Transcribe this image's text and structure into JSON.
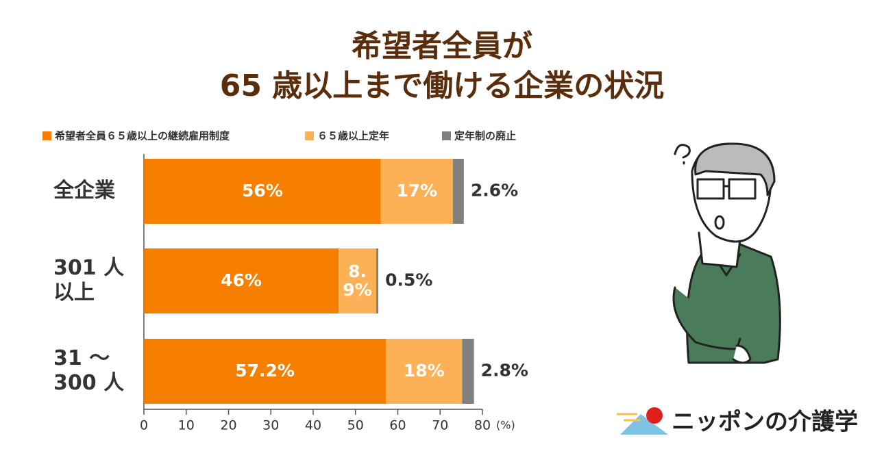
{
  "chart_data": {
    "type": "stacked-barh",
    "title": [
      "希望者全員が",
      "65 歳以上まで働ける企業の状況"
    ],
    "categories": [
      [
        "全企業"
      ],
      [
        "301 人",
        "以上"
      ],
      [
        "31 ～",
        "300 人"
      ]
    ],
    "series": [
      {
        "name": "希望者全員６５歳以上の継続雇用制度",
        "color": "#f77f00",
        "values": [
          56,
          46,
          57.2
        ],
        "value_labels": [
          "56%",
          "46%",
          "57.2%"
        ]
      },
      {
        "name": "６５歳以上定年",
        "color": "#fdb157",
        "values": [
          17,
          8.9,
          18
        ],
        "value_labels": [
          "17%",
          "8.9%",
          "18%"
        ]
      },
      {
        "name": "定年制の廃止",
        "color": "#808080",
        "values": [
          2.6,
          0.5,
          2.8
        ],
        "value_labels": [
          "2.6%",
          "0.5%",
          "2.8%"
        ]
      }
    ],
    "xlim": [
      0,
      80
    ],
    "xticks": [
      0,
      10,
      20,
      30,
      40,
      50,
      60,
      70,
      80
    ],
    "x_unit": "(%)",
    "legend": "top"
  },
  "logo": "ニッポンの介護学"
}
